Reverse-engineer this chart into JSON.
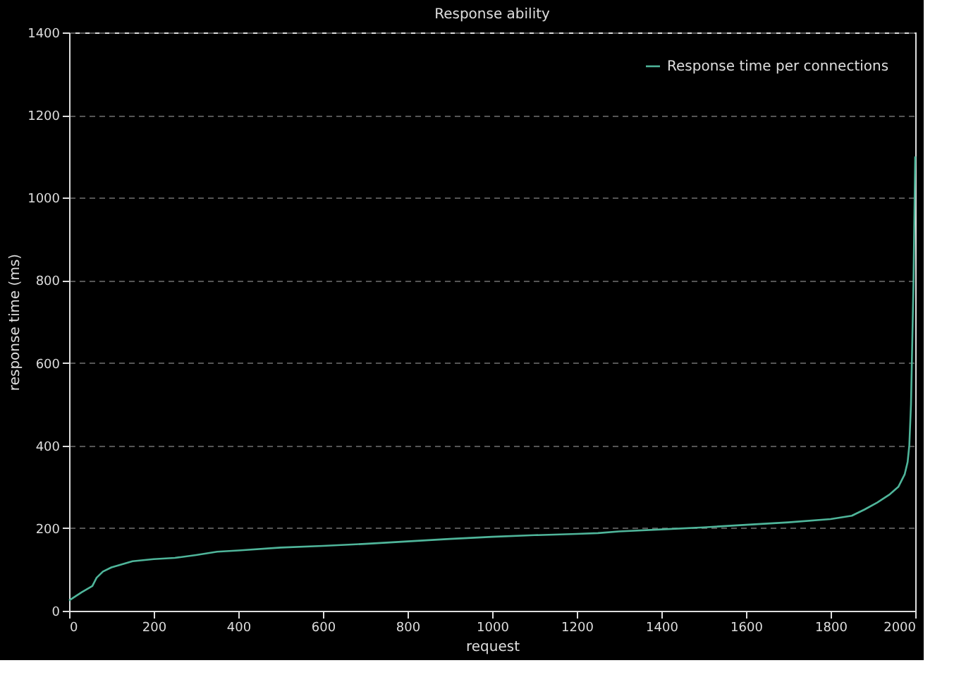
{
  "chart_data": {
    "type": "line",
    "title": "Response ability",
    "xlabel": "request",
    "ylabel": "response time (ms)",
    "series": [
      {
        "name": "Response time per connections",
        "color": "#4fb59a",
        "x": [
          0,
          30,
          55,
          65,
          80,
          100,
          150,
          200,
          250,
          300,
          350,
          400,
          500,
          600,
          700,
          800,
          900,
          1000,
          1100,
          1200,
          1250,
          1300,
          1400,
          1500,
          1600,
          1700,
          1800,
          1850,
          1880,
          1910,
          1940,
          1960,
          1975,
          1982,
          1986,
          1990,
          1993,
          1996,
          1998,
          2000
        ],
        "values": [
          25,
          45,
          60,
          80,
          95,
          105,
          120,
          125,
          128,
          135,
          143,
          146,
          153,
          157,
          162,
          168,
          174,
          179,
          183,
          186,
          188,
          192,
          197,
          202,
          208,
          214,
          222,
          230,
          245,
          262,
          282,
          300,
          330,
          360,
          400,
          500,
          650,
          800,
          950,
          1100
        ]
      }
    ],
    "xlim": [
      0,
      2000
    ],
    "xticks": [
      0,
      200,
      400,
      600,
      800,
      1000,
      1200,
      1400,
      1600,
      1800,
      2000
    ],
    "ylim": [
      0,
      1400
    ],
    "yticks": [
      0,
      200,
      400,
      600,
      800,
      1000,
      1200,
      1400
    ],
    "grid": "y",
    "legend": "top right",
    "marker": "none",
    "line_style": "solid"
  }
}
